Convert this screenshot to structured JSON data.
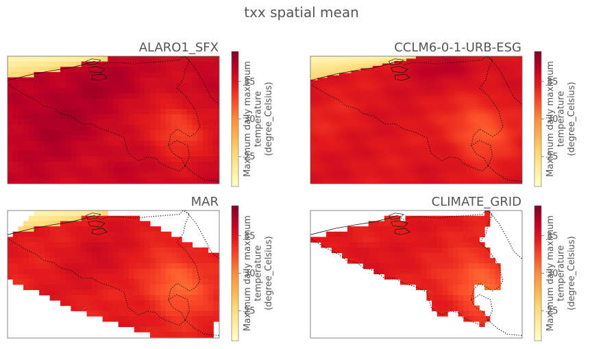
{
  "figure": {
    "suptitle": "txx spatial mean"
  },
  "colorbar": {
    "label_lines": [
      "Maximum daily maximum",
      "temperature",
      "(degree_Celsius)"
    ],
    "ticks": [
      25,
      30,
      35
    ],
    "range": [
      21,
      39
    ],
    "colormap": "YlOrRd",
    "colors": [
      "#ffffcc",
      "#ffeda0",
      "#fed976",
      "#feb24c",
      "#fd8d3c",
      "#fc4e2a",
      "#e31a1c",
      "#bd0026",
      "#800026"
    ]
  },
  "chart_data": [
    {
      "type": "heatmap",
      "title": "ALARO1_SFX",
      "value_range": [
        21,
        39
      ],
      "typical_value": 36,
      "coverage": "full",
      "coastal_values": [
        22,
        26
      ],
      "hot_spots": [
        "west",
        "north-central",
        "south-west"
      ],
      "cooler_spots": [
        "south-east hills 31-33"
      ]
    },
    {
      "type": "heatmap",
      "title": "CCLM6-0-1-URB-ESG",
      "value_range": [
        21,
        39
      ],
      "typical_value": 35,
      "coverage": "full",
      "coastal_values": [
        22,
        26
      ],
      "hot_spots": [
        "north-east"
      ],
      "cooler_spots": [
        "south-east hills 31-33"
      ]
    },
    {
      "type": "heatmap",
      "title": "MAR",
      "value_range": [
        21,
        39
      ],
      "typical_value": 34.5,
      "coverage": "rotated domain",
      "coastal_values": [
        22,
        26
      ],
      "hot_spots": [
        "central"
      ],
      "cooler_spots": [
        "south-east 32-33"
      ]
    },
    {
      "type": "heatmap",
      "title": "CLIMATE_GRID",
      "value_range": [
        21,
        39
      ],
      "typical_value": 34.5,
      "coverage": "Belgium only",
      "coastal_values": [],
      "hot_spots": [
        "north-west"
      ],
      "cooler_spots": [
        "Ardennes 32-33"
      ]
    }
  ]
}
